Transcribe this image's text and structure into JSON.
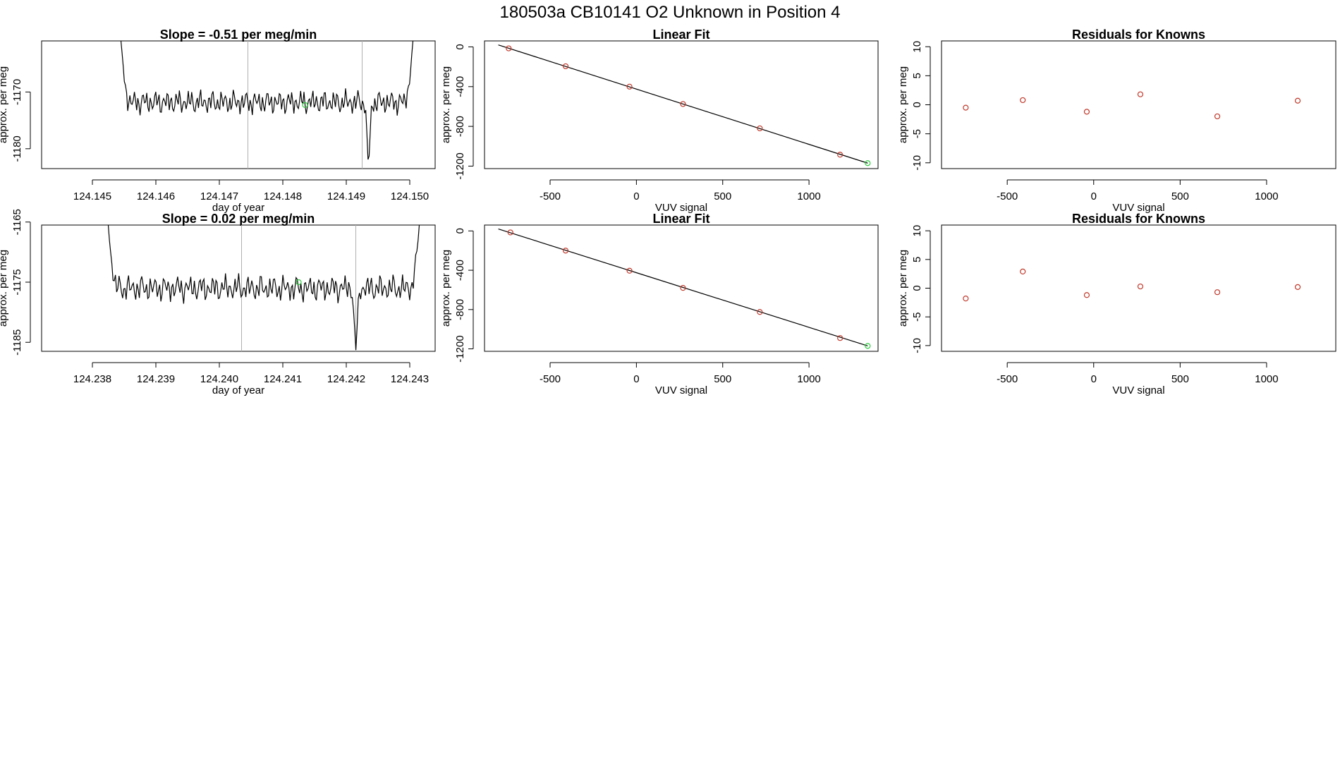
{
  "page_title": "180503a      CB10141    O2 Unknown in Position  4",
  "colors": {
    "line": "#000000",
    "known_point": "#c0392b",
    "unknown_point": "#2ecc40",
    "vline": "#b0b0b0",
    "background": "#ffffff"
  },
  "chart_data": [
    {
      "type": "line",
      "title": "Slope =  -0.51  per meg/min",
      "xlabel": "day of year",
      "ylabel": "approx. per meg",
      "xlim": [
        124.1442,
        124.1504
      ],
      "ylim": [
        -1183.5,
        -1161.0
      ],
      "xticks": [
        124.145,
        124.146,
        124.147,
        124.148,
        124.149,
        124.15
      ],
      "xtick_labels": [
        "124.145",
        "124.146",
        "124.147",
        "124.148",
        "124.149",
        "124.150"
      ],
      "yticks": [
        -1180,
        -1170
      ],
      "ytick_labels": [
        "-1180",
        "-1170"
      ],
      "vlines": [
        124.14745,
        124.14925
      ],
      "series": [
        {
          "x_start": 124.14545,
          "x_end": 124.15005,
          "noise_mean": -1171.8,
          "noise_amplitude": 2.2,
          "start_value": -1161.0,
          "end_value": -1161.0,
          "dips": [
            {
              "x": 124.14935,
              "value": -1183.5
            }
          ]
        }
      ],
      "unknown_point": {
        "x": 124.14835,
        "y": -1172.3
      }
    },
    {
      "type": "scatter",
      "title": "Linear Fit",
      "xlabel": "VUV signal",
      "ylabel": "approx. per meg",
      "xlim": [
        -880,
        1400
      ],
      "ylim": [
        -1225,
        60
      ],
      "xticks": [
        -500,
        0,
        500,
        1000
      ],
      "xtick_labels": [
        "-500",
        "0",
        "500",
        "1000"
      ],
      "yticks": [
        -1200,
        -800,
        -400,
        0
      ],
      "ytick_labels": [
        "-1200",
        "-800",
        "-400",
        "0"
      ],
      "fit_line": {
        "x": [
          -800,
          1340
        ],
        "y": [
          20,
          -1170
        ]
      },
      "known_points": {
        "x": [
          -740,
          -410,
          -40,
          270,
          715,
          1180
        ],
        "y": [
          -15,
          -195,
          -400,
          -575,
          -820,
          -1085
        ]
      },
      "unknown_point": {
        "x": 1340,
        "y": -1170
      }
    },
    {
      "type": "scatter",
      "title": "Residuals for Knowns",
      "xlabel": "VUV signal",
      "ylabel": "approx. per meg",
      "xlim": [
        -880,
        1400
      ],
      "ylim": [
        -11,
        11
      ],
      "xticks": [
        -500,
        0,
        500,
        1000
      ],
      "xtick_labels": [
        "-500",
        "0",
        "500",
        "1000"
      ],
      "yticks": [
        -10,
        -5,
        0,
        5,
        10
      ],
      "ytick_labels": [
        "-10",
        "-5",
        "0",
        "5",
        "10"
      ],
      "known_points": {
        "x": [
          -740,
          -410,
          -40,
          270,
          715,
          1180
        ],
        "y": [
          -0.5,
          0.8,
          -1.2,
          1.8,
          -2.0,
          0.7
        ]
      }
    },
    {
      "type": "line",
      "title": "Slope =  0.02  per meg/min",
      "xlabel": "day of year",
      "ylabel": "approx. per meg",
      "xlim": [
        124.2372,
        124.2434
      ],
      "ylim": [
        -1186.5,
        -1165.5
      ],
      "xticks": [
        124.238,
        124.239,
        124.24,
        124.241,
        124.242,
        124.243
      ],
      "xtick_labels": [
        "124.238",
        "124.239",
        "124.240",
        "124.241",
        "124.242",
        "124.243"
      ],
      "yticks": [
        -1185,
        -1175,
        -1165
      ],
      "ytick_labels": [
        "-1185",
        "-1175",
        "-1165"
      ],
      "vlines": [
        124.24035,
        124.24215
      ],
      "series": [
        {
          "x_start": 124.23825,
          "x_end": 124.24315,
          "noise_mean": -1176.0,
          "noise_amplitude": 2.3,
          "start_value": -1165.5,
          "end_value": -1165.5,
          "dips": [
            {
              "x": 124.24215,
              "value": -1186.5
            }
          ]
        }
      ],
      "unknown_point": {
        "x": 124.24125,
        "y": -1175.0
      }
    },
    {
      "type": "scatter",
      "title": "Linear Fit",
      "xlabel": "VUV signal",
      "ylabel": "approx. per meg",
      "xlim": [
        -880,
        1400
      ],
      "ylim": [
        -1225,
        60
      ],
      "xticks": [
        -500,
        0,
        500,
        1000
      ],
      "xtick_labels": [
        "-500",
        "0",
        "500",
        "1000"
      ],
      "yticks": [
        -1200,
        -800,
        -400,
        0
      ],
      "ytick_labels": [
        "-1200",
        "-800",
        "-400",
        "0"
      ],
      "fit_line": {
        "x": [
          -800,
          1340
        ],
        "y": [
          20,
          -1170
        ]
      },
      "known_points": {
        "x": [
          -730,
          -410,
          -40,
          270,
          715,
          1180
        ],
        "y": [
          -15,
          -200,
          -405,
          -580,
          -825,
          -1090
        ]
      },
      "unknown_point": {
        "x": 1340,
        "y": -1170
      }
    },
    {
      "type": "scatter",
      "title": "Residuals for Knowns",
      "xlabel": "VUV signal",
      "ylabel": "approx. per meg",
      "xlim": [
        -880,
        1400
      ],
      "ylim": [
        -11,
        11
      ],
      "xticks": [
        -500,
        0,
        500,
        1000
      ],
      "xtick_labels": [
        "-500",
        "0",
        "500",
        "1000"
      ],
      "yticks": [
        -10,
        -5,
        0,
        5,
        10
      ],
      "ytick_labels": [
        "-10",
        "-5",
        "0",
        "5",
        "10"
      ],
      "known_points": {
        "x": [
          -740,
          -410,
          -40,
          270,
          715,
          1180
        ],
        "y": [
          -1.8,
          2.9,
          -1.2,
          0.3,
          -0.7,
          0.2
        ]
      }
    }
  ]
}
